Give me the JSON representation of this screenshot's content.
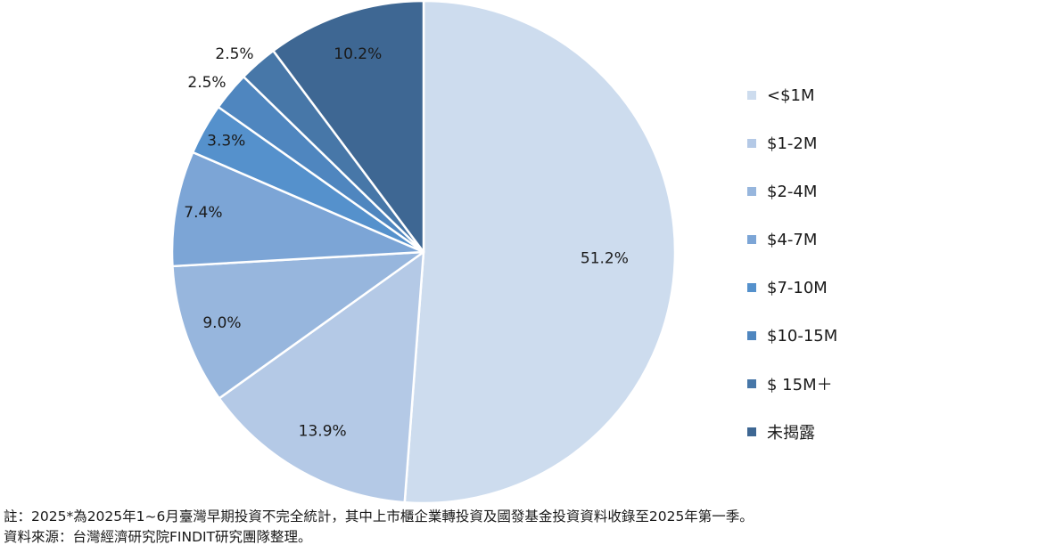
{
  "chart_data": {
    "type": "pie",
    "categories": [
      "<$1M",
      "$1-2M",
      "$2-4M",
      "$4-7M",
      "$7-10M",
      "$10-15M",
      "$ 15M＋",
      "未揭露"
    ],
    "values": [
      51.2,
      13.9,
      9.0,
      7.4,
      3.3,
      2.5,
      2.5,
      10.2
    ],
    "labels": [
      "51.2%",
      "13.9%",
      "9.0%",
      "7.4%",
      "3.3%",
      "2.5%",
      "2.5%",
      "10.2%"
    ],
    "unit": "%",
    "start_angle": "12 o'clock",
    "direction": "clockwise",
    "colors": [
      "#cddcee",
      "#b4c9e6",
      "#97b6dd",
      "#7ca5d6",
      "#5591cc",
      "#4f86bf",
      "#4777a8",
      "#3e6793"
    ],
    "legend_position": "right"
  },
  "footnotes": {
    "note": "註：2025*為2025年1~6月臺灣早期投資不完全統計，其中上市櫃企業轉投資及國發基金投資資料收錄至2025年第一季。",
    "source": "資料來源：台灣經濟研究院FINDIT研究團隊整理。"
  }
}
